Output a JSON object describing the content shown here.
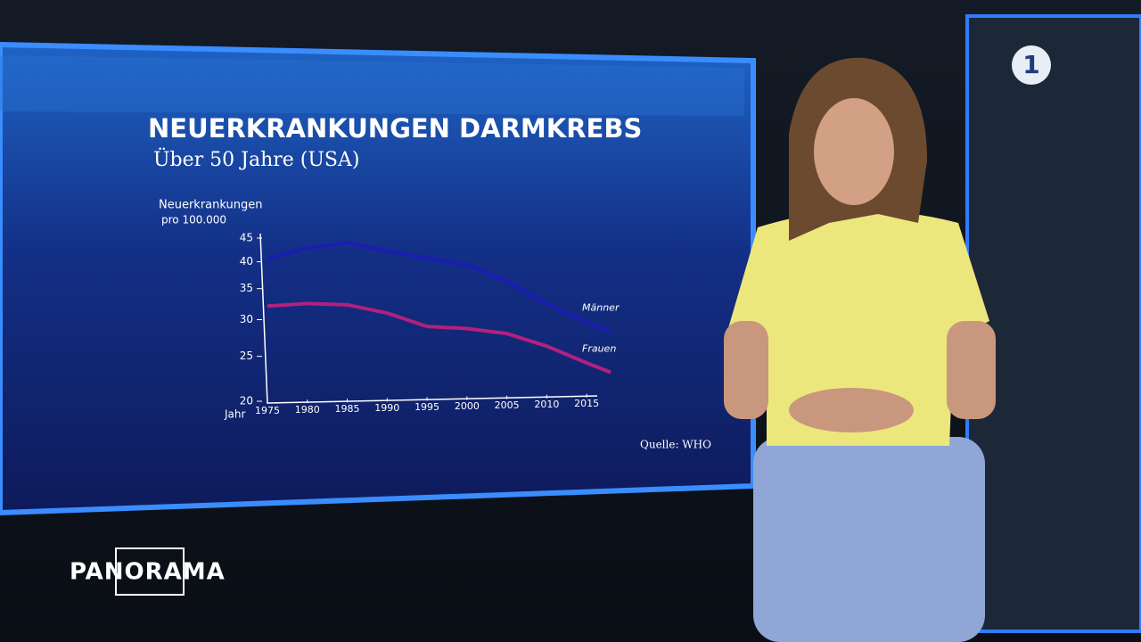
{
  "chart_data": {
    "type": "line",
    "title": "NEUERKRANKUNGEN DARMKREBS",
    "subtitle": "Über 50 Jahre (USA)",
    "y_label": [
      "Neuerkrankungen",
      "pro 100.000"
    ],
    "x_label": "Jahr",
    "source": "Quelle: WHO",
    "x": [
      1975,
      1980,
      1985,
      1990,
      1995,
      2000,
      2005,
      2010,
      2015,
      2018
    ],
    "series": [
      {
        "name": "Männer",
        "color": "#1c1cb4",
        "values": [
          40.6,
          42.8,
          44,
          42.2,
          40.7,
          39.4,
          36.3,
          32.5,
          29.6,
          28.3
        ]
      },
      {
        "name": "Frauen",
        "color": "#b4207e",
        "values": [
          32.1,
          32.5,
          32.3,
          31.0,
          29.0,
          28.7,
          28.0,
          26.3,
          24.2,
          23.1
        ]
      }
    ],
    "xlim": [
      1975,
      2018
    ],
    "xticks": [
      1975,
      1980,
      1985,
      1990,
      1995,
      2000,
      2005,
      2010,
      2015
    ],
    "ylim": [
      20,
      45
    ],
    "yticks": [
      20,
      25,
      30,
      35,
      40,
      45
    ],
    "log_y": true
  },
  "brand": "PANORAMA",
  "channel": "1"
}
